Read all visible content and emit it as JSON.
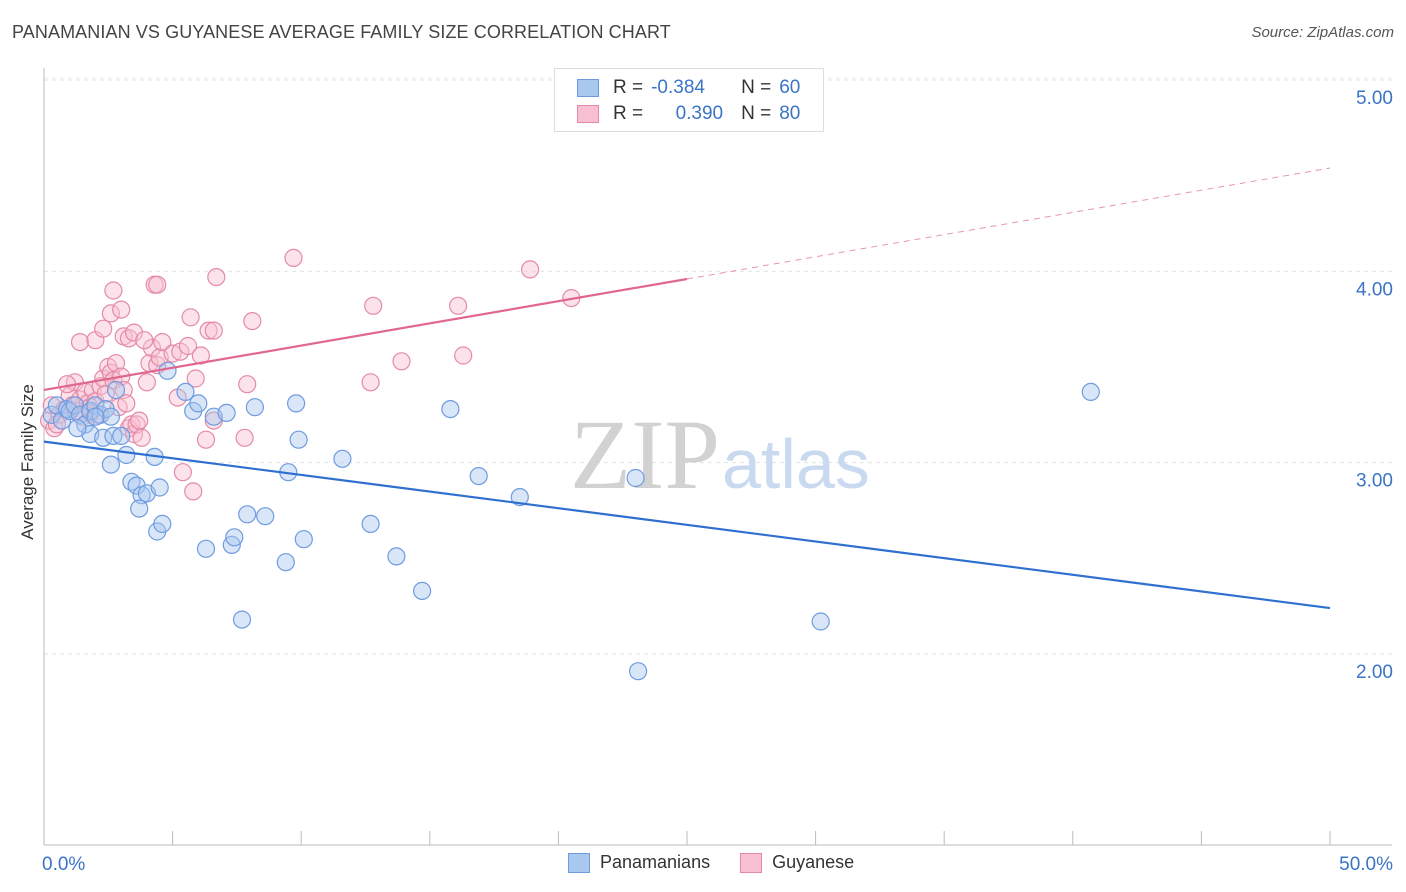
{
  "title": "PANAMANIAN VS GUYANESE AVERAGE FAMILY SIZE CORRELATION CHART",
  "source": "Source: ZipAtlas.com",
  "watermark": {
    "zip": "ZIP",
    "atlas": "atlas"
  },
  "legend": {
    "rows": [
      {
        "r_label": "R =",
        "r_value": "-0.384",
        "n_label": "N =",
        "n_value": "60",
        "color": "#a9c8f0",
        "border": "#6f9be0"
      },
      {
        "r_label": "R =",
        "r_value": "0.390",
        "n_label": "N =",
        "n_value": "80",
        "color": "#f8c0d2",
        "border": "#e58aa6"
      }
    ]
  },
  "chart_data": {
    "type": "scatter",
    "title": "PANAMANIAN VS GUYANESE AVERAGE FAMILY SIZE CORRELATION CHART",
    "xlabel": "",
    "ylabel": "Average Family Size",
    "xlim": [
      0,
      50
    ],
    "ylim": [
      1.0,
      5.2
    ],
    "x_tick_labels": {
      "left": "0.0%",
      "right": "50.0%"
    },
    "y_ticks": [
      2,
      3,
      4,
      5
    ],
    "y_tick_labels": [
      "2.00",
      "3.00",
      "4.00",
      "5.00"
    ],
    "grid": true,
    "legend_position": "top-center",
    "series": [
      {
        "name": "Panamanians",
        "color": "#6f9be0",
        "fill": "#a9c8f0",
        "line_color": "#2f6fd0",
        "trend": {
          "x": [
            0,
            50
          ],
          "y": [
            3.11,
            2.24
          ]
        },
        "points": [
          [
            0.3,
            3.25
          ],
          [
            0.5,
            3.3
          ],
          [
            0.7,
            3.22
          ],
          [
            0.9,
            3.28
          ],
          [
            1.0,
            3.27
          ],
          [
            1.2,
            3.3
          ],
          [
            1.4,
            3.25
          ],
          [
            1.6,
            3.2
          ],
          [
            1.8,
            3.27
          ],
          [
            2.0,
            3.3
          ],
          [
            2.2,
            3.25
          ],
          [
            2.4,
            3.28
          ],
          [
            2.6,
            3.24
          ],
          [
            1.8,
            3.15
          ],
          [
            2.3,
            3.13
          ],
          [
            2.7,
            3.14
          ],
          [
            2.8,
            3.38
          ],
          [
            3.0,
            3.14
          ],
          [
            3.2,
            3.04
          ],
          [
            3.4,
            2.9
          ],
          [
            2.6,
            2.99
          ],
          [
            3.6,
            2.88
          ],
          [
            3.8,
            2.83
          ],
          [
            3.7,
            2.76
          ],
          [
            4.0,
            2.84
          ],
          [
            4.3,
            3.03
          ],
          [
            4.4,
            2.64
          ],
          [
            4.6,
            2.68
          ],
          [
            4.5,
            2.87
          ],
          [
            4.8,
            3.48
          ],
          [
            5.5,
            3.37
          ],
          [
            5.8,
            3.27
          ],
          [
            6.0,
            3.31
          ],
          [
            6.6,
            3.24
          ],
          [
            7.1,
            3.26
          ],
          [
            6.3,
            2.55
          ],
          [
            7.3,
            2.57
          ],
          [
            7.4,
            2.61
          ],
          [
            7.7,
            2.18
          ],
          [
            7.9,
            2.73
          ],
          [
            8.2,
            3.29
          ],
          [
            8.6,
            2.72
          ],
          [
            9.4,
            2.48
          ],
          [
            9.5,
            2.95
          ],
          [
            9.8,
            3.31
          ],
          [
            9.9,
            3.12
          ],
          [
            10.1,
            2.6
          ],
          [
            11.6,
            3.02
          ],
          [
            12.7,
            2.68
          ],
          [
            13.7,
            2.51
          ],
          [
            14.7,
            2.33
          ],
          [
            15.8,
            3.28
          ],
          [
            16.9,
            2.93
          ],
          [
            18.5,
            2.82
          ],
          [
            23.0,
            2.92
          ],
          [
            23.1,
            1.91
          ],
          [
            30.2,
            2.17
          ],
          [
            40.7,
            3.37
          ],
          [
            2.0,
            3.24
          ],
          [
            1.3,
            3.18
          ]
        ]
      },
      {
        "name": "Guyanese",
        "color": "#e58aa6",
        "fill": "#f8c0d2",
        "line_color": "#e06890",
        "trend": {
          "x": [
            0,
            25
          ],
          "y": [
            3.38,
            3.96
          ]
        },
        "trend_extension": {
          "x": [
            25,
            50
          ],
          "y": [
            3.96,
            4.54
          ]
        },
        "points": [
          [
            0.2,
            3.22
          ],
          [
            0.3,
            3.3
          ],
          [
            0.4,
            3.18
          ],
          [
            0.6,
            3.25
          ],
          [
            0.8,
            3.28
          ],
          [
            1.0,
            3.35
          ],
          [
            1.1,
            3.3
          ],
          [
            1.2,
            3.42
          ],
          [
            1.3,
            3.27
          ],
          [
            1.4,
            3.33
          ],
          [
            1.5,
            3.24
          ],
          [
            1.6,
            3.37
          ],
          [
            1.7,
            3.31
          ],
          [
            1.8,
            3.29
          ],
          [
            1.9,
            3.38
          ],
          [
            2.0,
            3.32
          ],
          [
            2.1,
            3.25
          ],
          [
            2.2,
            3.4
          ],
          [
            2.3,
            3.44
          ],
          [
            2.4,
            3.36
          ],
          [
            2.5,
            3.5
          ],
          [
            2.6,
            3.47
          ],
          [
            2.7,
            3.43
          ],
          [
            2.8,
            3.52
          ],
          [
            2.9,
            3.29
          ],
          [
            3.0,
            3.45
          ],
          [
            3.1,
            3.38
          ],
          [
            3.2,
            3.31
          ],
          [
            3.3,
            3.18
          ],
          [
            3.4,
            3.2
          ],
          [
            3.5,
            3.15
          ],
          [
            3.6,
            3.2
          ],
          [
            3.7,
            3.22
          ],
          [
            3.8,
            3.13
          ],
          [
            4.0,
            3.42
          ],
          [
            4.1,
            3.52
          ],
          [
            4.2,
            3.6
          ],
          [
            4.4,
            3.51
          ],
          [
            4.5,
            3.55
          ],
          [
            4.6,
            3.63
          ],
          [
            1.4,
            3.63
          ],
          [
            2.0,
            3.64
          ],
          [
            2.3,
            3.7
          ],
          [
            2.6,
            3.78
          ],
          [
            2.7,
            3.9
          ],
          [
            3.0,
            3.8
          ],
          [
            3.1,
            3.66
          ],
          [
            3.3,
            3.65
          ],
          [
            3.5,
            3.68
          ],
          [
            3.9,
            3.64
          ],
          [
            4.3,
            3.93
          ],
          [
            4.4,
            3.93
          ],
          [
            5.0,
            3.57
          ],
          [
            5.2,
            3.34
          ],
          [
            5.3,
            3.58
          ],
          [
            5.6,
            3.61
          ],
          [
            5.7,
            3.76
          ],
          [
            5.9,
            3.44
          ],
          [
            6.1,
            3.56
          ],
          [
            6.3,
            3.12
          ],
          [
            6.4,
            3.69
          ],
          [
            6.6,
            3.69
          ],
          [
            6.7,
            3.97
          ],
          [
            5.4,
            2.95
          ],
          [
            5.8,
            2.85
          ],
          [
            7.8,
            3.13
          ],
          [
            7.9,
            3.41
          ],
          [
            8.1,
            3.74
          ],
          [
            9.7,
            4.07
          ],
          [
            12.7,
            3.42
          ],
          [
            12.8,
            3.82
          ],
          [
            13.9,
            3.53
          ],
          [
            16.1,
            3.82
          ],
          [
            16.3,
            3.56
          ],
          [
            18.9,
            4.01
          ],
          [
            20.5,
            3.86
          ],
          [
            0.5,
            3.2
          ],
          [
            0.9,
            3.41
          ],
          [
            1.8,
            3.26
          ],
          [
            6.6,
            3.22
          ]
        ]
      }
    ]
  }
}
